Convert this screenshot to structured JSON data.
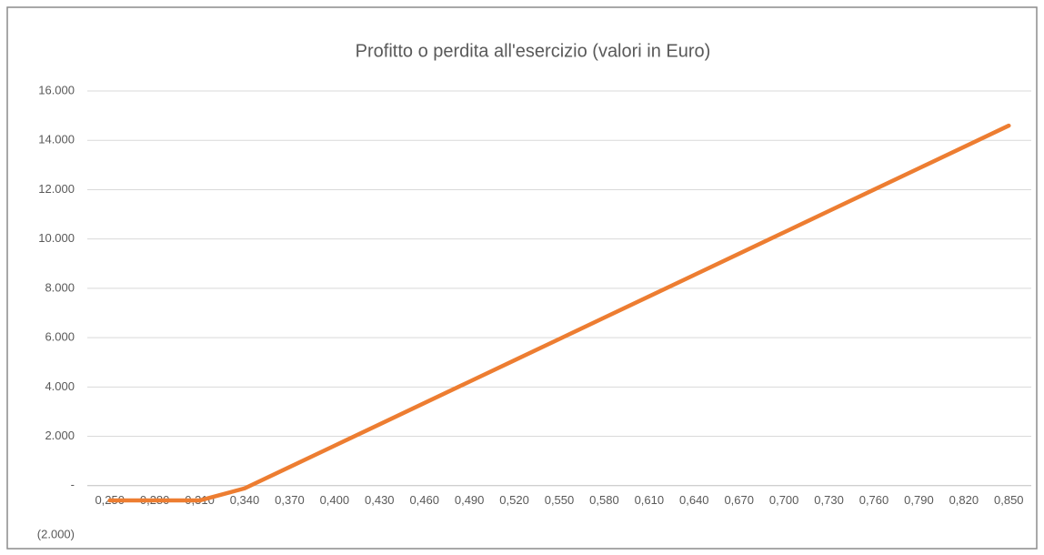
{
  "chart_data": {
    "type": "line",
    "title": "Profitto o perdita all'esercizio (valori in Euro)",
    "categories": [
      "0,250",
      "0,280",
      "0,310",
      "0,340",
      "0,370",
      "0,400",
      "0,430",
      "0,460",
      "0,490",
      "0,520",
      "0,550",
      "0,580",
      "0,610",
      "0,640",
      "0,670",
      "0,700",
      "0,730",
      "0,760",
      "0,790",
      "0,820",
      "0,850"
    ],
    "series": [
      {
        "color": "#ED7D31",
        "values": [
          -600,
          -600,
          -600,
          -110,
          755,
          1620,
          2485,
          3350,
          4215,
          5080,
          5945,
          6810,
          7675,
          8540,
          9405,
          10270,
          11135,
          12000,
          12865,
          13730,
          14595
        ]
      }
    ],
    "ylim": [
      -2000,
      16000
    ],
    "yticks": [
      {
        "value": -2000,
        "label": "(2.000)"
      },
      {
        "value": 0,
        "label": "-"
      },
      {
        "value": 2000,
        "label": "2.000"
      },
      {
        "value": 4000,
        "label": "4.000"
      },
      {
        "value": 6000,
        "label": "6.000"
      },
      {
        "value": 8000,
        "label": "8.000"
      },
      {
        "value": 10000,
        "label": "10.000"
      },
      {
        "value": 12000,
        "label": "12.000"
      },
      {
        "value": 14000,
        "label": "14.000"
      },
      {
        "value": 16000,
        "label": "16.000"
      }
    ],
    "grid": true
  }
}
